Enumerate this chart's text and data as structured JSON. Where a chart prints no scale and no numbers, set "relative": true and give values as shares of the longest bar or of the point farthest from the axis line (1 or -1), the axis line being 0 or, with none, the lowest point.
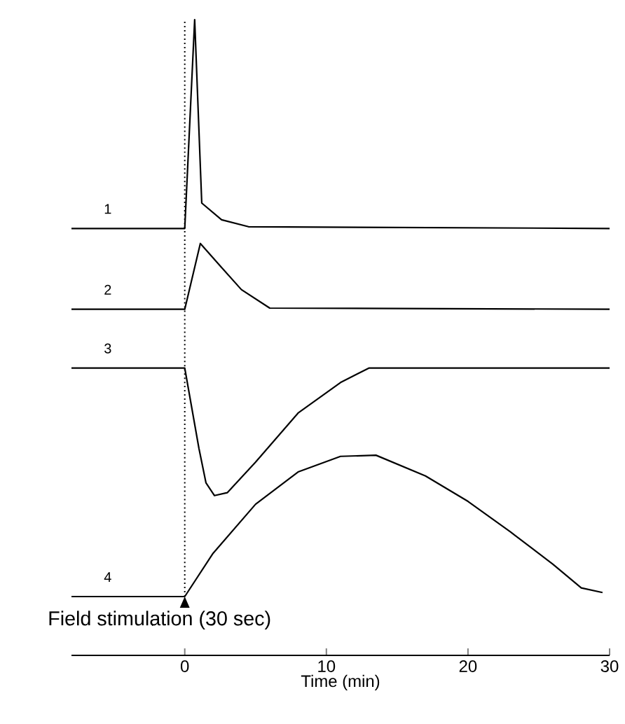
{
  "chart_data": {
    "type": "line",
    "relative": true,
    "xlabel": "Time (min)",
    "xlim": [
      -8,
      30
    ],
    "xticks": [
      0,
      10,
      20,
      30
    ],
    "marker": "none",
    "line_style": "solid",
    "series": [
      {
        "name": "1",
        "color": "#000000",
        "x": [
          -8,
          0,
          0.7,
          1.2,
          2.6,
          4.5,
          30
        ],
        "values": [
          0.638,
          0.638,
          1.0,
          0.682,
          0.653,
          0.641,
          0.638
        ]
      },
      {
        "name": "2",
        "color": "#000000",
        "x": [
          -8,
          0,
          1.1,
          2.5,
          4,
          6,
          30
        ],
        "values": [
          0.498,
          0.498,
          0.612,
          0.573,
          0.532,
          0.5,
          0.498
        ]
      },
      {
        "name": "3",
        "color": "#000000",
        "x": [
          -8,
          0,
          1,
          1.5,
          2.1,
          3,
          5,
          8,
          11,
          13,
          30
        ],
        "values": [
          0.396,
          0.396,
          0.257,
          0.197,
          0.175,
          0.18,
          0.233,
          0.318,
          0.371,
          0.396,
          0.396
        ]
      },
      {
        "name": "4",
        "color": "#000000",
        "x": [
          -8,
          0,
          2,
          5,
          8,
          11,
          13.5,
          17,
          20,
          23,
          26,
          28,
          29.5
        ],
        "values": [
          0,
          0,
          0.075,
          0.16,
          0.216,
          0.243,
          0.245,
          0.209,
          0.165,
          0.112,
          0.056,
          0.015,
          0.007
        ]
      }
    ],
    "ref_lines": [
      {
        "axis": "x",
        "value": 0,
        "line_style": "dotted"
      }
    ],
    "annotations": [
      {
        "text": "Field stimulation (30 sec)",
        "x": 0,
        "y": 0
      }
    ]
  }
}
